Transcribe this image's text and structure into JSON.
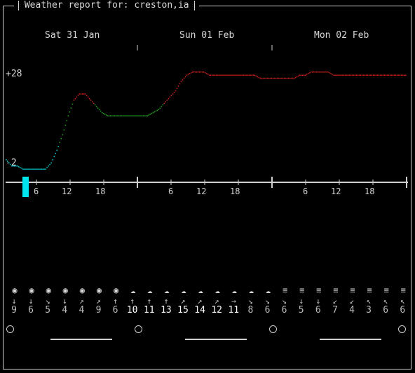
{
  "window": {
    "title": "Weather report for: creston,ia"
  },
  "days": [
    "Sat 31 Jan",
    "Sun 01 Feb",
    "Mon 02 Feb"
  ],
  "y_axis": {
    "max_label": "+28",
    "min_label": "-2"
  },
  "hour_labels": [
    "6",
    "12",
    "18",
    "6",
    "12",
    "18",
    "6",
    "12",
    "18"
  ],
  "weather_icons": [
    "sun",
    "sun",
    "sun",
    "sun",
    "sun",
    "sun",
    "sun",
    "cloud",
    "cloud",
    "cloud",
    "cloud",
    "cloud",
    "cloud",
    "cloud",
    "cloud",
    "cloud",
    "fog",
    "fog",
    "fog",
    "fog",
    "fog",
    "fog",
    "fog",
    "fog"
  ],
  "wind_arrows": [
    "↓",
    "↓",
    "↘",
    "↓",
    "↗",
    "↗",
    "↑",
    "↑",
    "↑",
    "↑",
    "↗",
    "↗",
    "↗",
    "→",
    "↘",
    "↘",
    "↘",
    "↓",
    "↓",
    "↙",
    "↙",
    "↖",
    "↖",
    "↖"
  ],
  "wind_speeds": [
    "9",
    "6",
    "5",
    "4",
    "4",
    "9",
    "6",
    "10",
    "11",
    "13",
    "15",
    "14",
    "12",
    "11",
    "8",
    "6",
    "6",
    "5",
    "6",
    "7",
    "4",
    "3",
    "6",
    "6"
  ],
  "colors": {
    "cold": "#00d4d4",
    "mild": "#22aa22",
    "warm": "#d02020",
    "cursor": "#00e5ee"
  },
  "chart_data": {
    "type": "line",
    "title": "",
    "xlabel": "",
    "ylabel": "",
    "ylim": [
      -2,
      28
    ],
    "x": [
      0,
      1,
      2,
      3,
      4,
      5,
      6,
      7,
      8,
      9,
      10,
      11,
      12,
      13,
      14,
      15,
      16,
      17,
      18,
      19,
      20,
      21,
      22,
      23,
      24,
      25,
      26,
      27,
      28,
      29,
      30,
      31,
      32,
      33,
      34,
      35,
      36,
      37,
      38,
      39,
      40,
      41,
      42,
      43,
      44,
      45,
      46,
      47,
      48,
      49,
      50,
      51,
      52,
      53,
      54,
      55,
      56,
      57,
      58,
      59,
      60,
      61,
      62,
      63,
      64,
      65,
      66,
      67,
      68,
      69,
      70,
      71
    ],
    "series": [
      {
        "values": [
          0,
          -2,
          -2,
          -3,
          -3,
          -3,
          -3,
          -3,
          -1,
          3,
          8,
          14,
          19,
          21,
          21,
          19,
          17,
          15,
          14,
          14,
          14,
          14,
          14,
          14,
          14,
          14,
          15,
          16,
          18,
          20,
          22,
          25,
          27,
          28,
          28,
          28,
          27,
          27,
          27,
          27,
          27,
          27,
          27,
          27,
          27,
          26,
          26,
          26,
          26,
          26,
          26,
          26,
          27,
          27,
          28,
          28,
          28,
          28,
          27,
          27,
          27,
          27,
          27,
          27,
          27,
          27,
          27,
          27,
          27,
          27,
          27,
          27
        ]
      }
    ]
  }
}
